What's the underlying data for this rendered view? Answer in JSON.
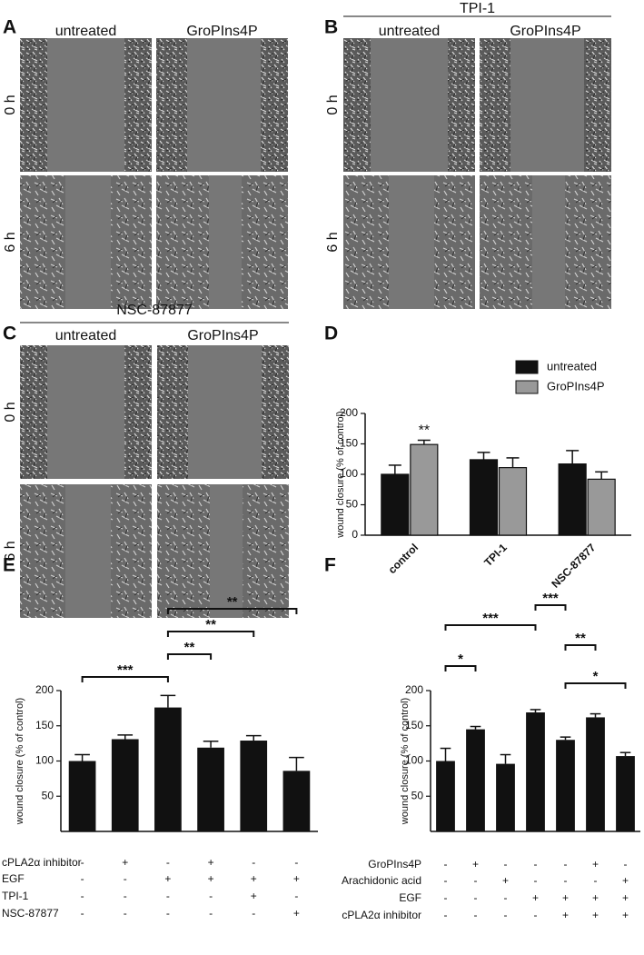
{
  "panels": [
    {
      "label": "A",
      "columns": [
        "untreated",
        "GroPIns4P"
      ],
      "rows": [
        "0 h",
        "6 h"
      ]
    },
    {
      "label": "B",
      "group": "TPI-1",
      "columns": [
        "untreated",
        "GroPIns4P"
      ],
      "rows": [
        "0 h",
        "6 h"
      ]
    },
    {
      "label": "C",
      "group": "NSC-87877",
      "columns": [
        "untreated",
        "GroPIns4P"
      ],
      "rows": [
        "0 h",
        "6 h"
      ]
    }
  ],
  "chart_data": [
    {
      "type": "grouped-bar",
      "panel": "D",
      "ylabel": "wound closure (% of control)",
      "categories": [
        "control",
        "TPI-1",
        "NSC-87877"
      ],
      "series": [
        {
          "name": "untreated",
          "color": "#111111",
          "values": [
            100,
            124,
            117
          ],
          "errors": [
            15,
            12,
            22
          ]
        },
        {
          "name": "GroPIns4P",
          "color": "#999999",
          "values": [
            149,
            111,
            92
          ],
          "errors": [
            7,
            16,
            12
          ]
        }
      ],
      "ylim": [
        0,
        200
      ],
      "yticks": [
        0,
        50,
        100,
        150,
        200
      ],
      "annotations": [
        {
          "text": "**",
          "category": 0,
          "series": 1
        }
      ]
    },
    {
      "type": "bar",
      "panel": "E",
      "ylabel": "wound closure (% of control)",
      "categories": [
        null,
        null,
        null,
        null,
        null,
        null
      ],
      "series": [
        {
          "color": "#111111",
          "values": [
            100,
            131,
            176,
            119,
            129,
            86
          ],
          "errors": [
            9,
            6,
            17,
            9,
            7,
            19
          ]
        }
      ],
      "ylim": [
        0,
        200
      ],
      "yticks": [
        50,
        100,
        150,
        200
      ],
      "conditions": [
        {
          "label": "cPLA2α inhibitor",
          "values": [
            "-",
            "+",
            "-",
            "+",
            "-",
            "-"
          ]
        },
        {
          "label": "EGF",
          "values": [
            "-",
            "-",
            "+",
            "+",
            "+",
            "+"
          ]
        },
        {
          "label": "TPI-1",
          "values": [
            "-",
            "-",
            "-",
            "-",
            "+",
            "-"
          ]
        },
        {
          "label": "NSC-87877",
          "values": [
            "-",
            "-",
            "-",
            "-",
            "-",
            "+"
          ]
        }
      ],
      "brackets": [
        {
          "text": "***",
          "from": 0,
          "to": 2
        },
        {
          "text": "**",
          "from": 2,
          "to": 3
        },
        {
          "text": "**",
          "from": 2,
          "to": 4
        },
        {
          "text": "**",
          "from": 2,
          "to": 5
        }
      ]
    },
    {
      "type": "bar",
      "panel": "F",
      "ylabel": "wound closure (% of control)",
      "categories": [
        null,
        null,
        null,
        null,
        null,
        null,
        null
      ],
      "series": [
        {
          "color": "#111111",
          "values": [
            100,
            145,
            96,
            169,
            130,
            162,
            107
          ],
          "errors": [
            18,
            4,
            13,
            4,
            4,
            5,
            5
          ]
        }
      ],
      "ylim": [
        0,
        200
      ],
      "yticks": [
        50,
        100,
        150,
        200
      ],
      "conditions": [
        {
          "label": "GroPIns4P",
          "values": [
            "-",
            "+",
            "-",
            "-",
            "-",
            "+",
            "-"
          ]
        },
        {
          "label": "Arachidonic acid",
          "values": [
            "-",
            "-",
            "+",
            "-",
            "-",
            "-",
            "+"
          ]
        },
        {
          "label": "EGF",
          "values": [
            "-",
            "-",
            "-",
            "+",
            "+",
            "+",
            "+"
          ]
        },
        {
          "label": "cPLA2α inhibitor",
          "values": [
            "-",
            "-",
            "-",
            "-",
            "+",
            "+",
            "+"
          ]
        }
      ],
      "brackets": [
        {
          "text": "***",
          "from": 3,
          "to": 4
        },
        {
          "text": "***",
          "from": 0,
          "to": 3
        },
        {
          "text": "**",
          "from": 4,
          "to": 5
        },
        {
          "text": "*",
          "from": 0,
          "to": 1
        },
        {
          "text": "*",
          "from": 4,
          "to": 6
        }
      ]
    }
  ]
}
